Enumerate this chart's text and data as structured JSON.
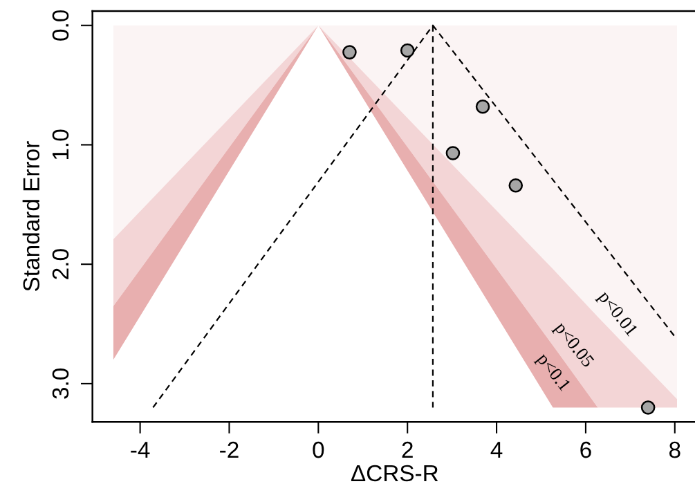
{
  "chart_data": {
    "type": "scatter",
    "xlabel": "ΔCRS-R",
    "ylabel": "Standard Error",
    "xlim": [
      -5.07,
      8.5
    ],
    "ylim": [
      3.32,
      -0.12
    ],
    "xticks": [
      -4,
      -2,
      0,
      2,
      4,
      6,
      8
    ],
    "yticks": [
      {
        "value": 0,
        "label": "0.0"
      },
      {
        "value": 1,
        "label": "1.0"
      },
      {
        "value": 2,
        "label": "2.0"
      },
      {
        "value": 3,
        "label": "3.0"
      }
    ],
    "grid": false,
    "legend": false,
    "stacked": true,
    "series": [
      {
        "type": "area",
        "color": "#fbf4f4",
        "x": [
          -4.6,
          0,
          5.264,
          6.272,
          8.05
        ],
        "values": [
          1.79,
          0,
          2.04,
          2.44,
          3.13
        ]
      },
      {
        "type": "area",
        "color": "#f3d5d6",
        "x": [
          -4.6,
          0,
          5.264,
          6.272,
          8.05
        ],
        "values": [
          0.56,
          0,
          0.64,
          0.76,
          0.07
        ]
      },
      {
        "type": "area",
        "color": "#e8afaf",
        "x": [
          -4.6,
          0,
          5.264,
          6.272
        ],
        "values": [
          0.45,
          0,
          0.52,
          0
        ]
      },
      {
        "type": "line",
        "color": "#000000",
        "line_style": "dashed",
        "x": [
          -3.71,
          2.57,
          8.03
        ],
        "values": [
          3.2,
          0,
          2.62
        ]
      },
      {
        "type": "line",
        "color": "#000000",
        "line_style": "dashed",
        "x": [
          2.57,
          2.57
        ],
        "values": [
          0,
          3.2
        ]
      },
      {
        "color": "#a6a6a6",
        "marker": "circle",
        "x": [
          0.7,
          2.0,
          3.69,
          3.02,
          4.43,
          7.4
        ],
        "values": [
          0.225,
          0.21,
          0.68,
          1.07,
          1.34,
          3.2
        ]
      }
    ],
    "annotations": [
      {
        "text": "p<0.01",
        "x": 6.23,
        "y": 2.42
      },
      {
        "text": "p<0.05",
        "x": 5.25,
        "y": 2.68
      },
      {
        "text": "p<0.1",
        "x": 4.79,
        "y": 2.91
      }
    ]
  }
}
